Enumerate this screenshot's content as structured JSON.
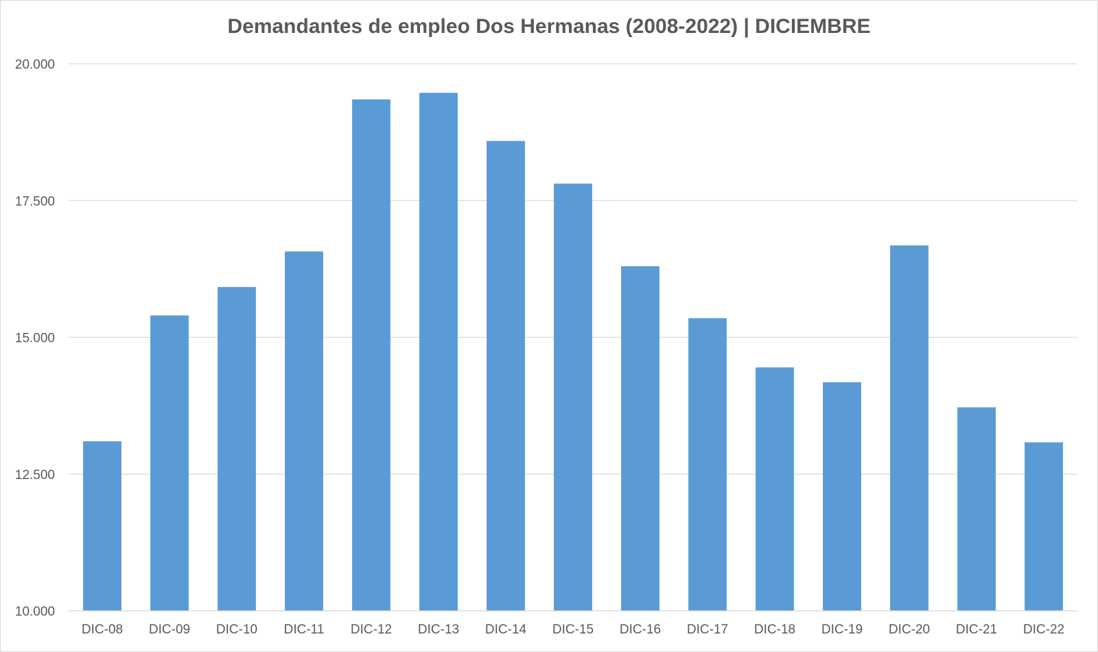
{
  "chart_data": {
    "type": "bar",
    "title": "Demandantes de empleo Dos Hermanas (2008-2022)  | DICIEMBRE",
    "xlabel": "",
    "ylabel": "",
    "categories": [
      "DIC-08",
      "DIC-09",
      "DIC-10",
      "DIC-11",
      "DIC-12",
      "DIC-13",
      "DIC-14",
      "DIC-15",
      "DIC-16",
      "DIC-17",
      "DIC-18",
      "DIC-19",
      "DIC-20",
      "DIC-21",
      "DIC-22"
    ],
    "values": [
      13100,
      15400,
      15920,
      16570,
      19350,
      19470,
      18590,
      17810,
      16300,
      15350,
      14450,
      14180,
      16680,
      13720,
      13080
    ],
    "ylim": [
      10000,
      20000
    ],
    "yticks": [
      "10.000",
      "12.500",
      "15.000",
      "17.500",
      "20.000"
    ],
    "ytick_values": [
      10000,
      12500,
      15000,
      17500,
      20000
    ],
    "grid": true,
    "legend": "none",
    "bar_color": "#5b9bd5"
  }
}
